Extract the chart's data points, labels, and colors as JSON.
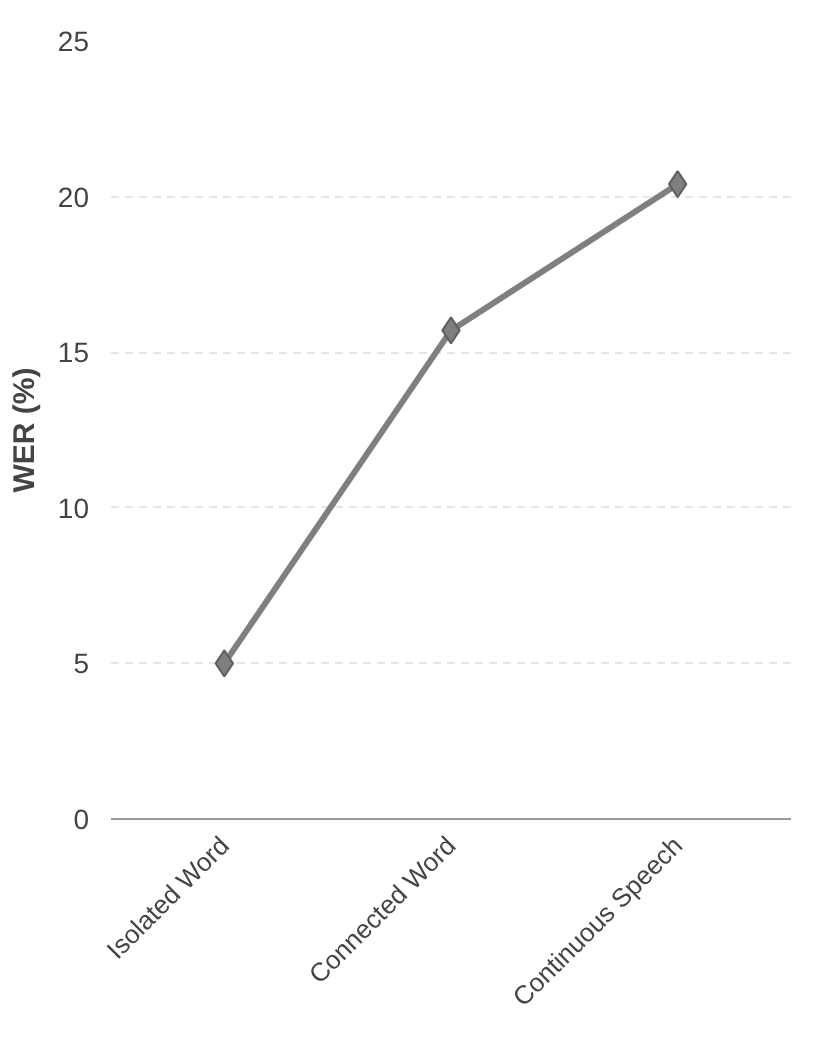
{
  "chart_data": {
    "type": "line",
    "ylabel": "WER (%)",
    "categories": [
      "Isolated Word",
      "Connected Word",
      "Continuous Speech"
    ],
    "series": [
      {
        "color": "#7f7f7f",
        "values": [
          5,
          15.7,
          20.4
        ]
      }
    ],
    "ylim": [
      0,
      25
    ],
    "yticks": [
      0,
      5,
      10,
      15,
      20,
      25
    ],
    "grid": "y",
    "marker": "diamond",
    "line_style": "solid"
  }
}
